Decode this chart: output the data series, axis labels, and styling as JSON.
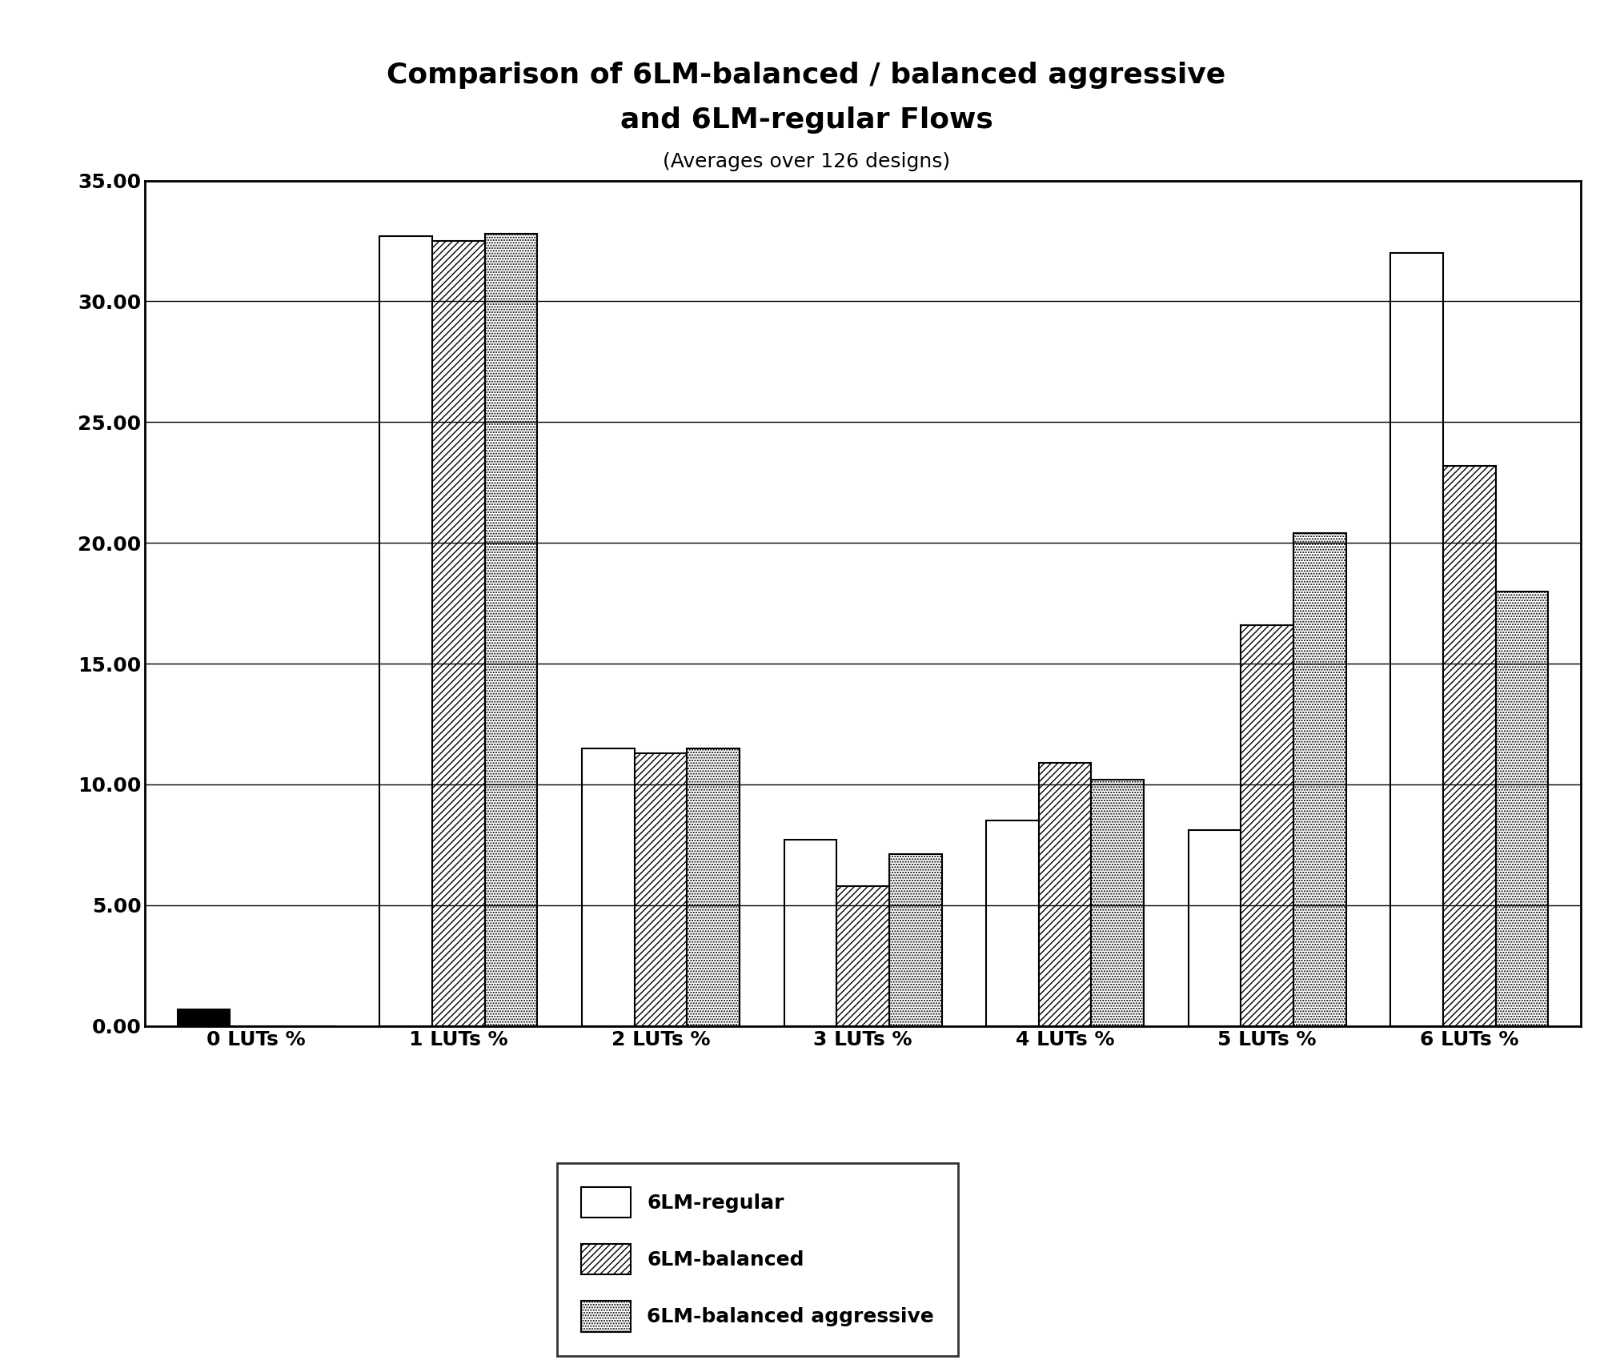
{
  "title_line1": "Comparison of 6LM-balanced / balanced aggressive",
  "title_line2": "and 6LM-regular Flows",
  "subtitle": "(Averages over 126 designs)",
  "categories": [
    "0 LUTs %",
    "1 LUTs %",
    "2 LUTs %",
    "3 LUTs %",
    "4 LUTs %",
    "5 LUTs %",
    "6 LUTs %"
  ],
  "series": {
    "6LM-regular": [
      0.7,
      32.7,
      11.5,
      7.7,
      8.5,
      8.1,
      32.0
    ],
    "6LM-balanced": [
      0.0,
      32.5,
      11.3,
      5.8,
      10.9,
      16.6,
      23.2
    ],
    "6LM-balanced aggressive": [
      0.0,
      32.8,
      11.5,
      7.1,
      10.2,
      20.4,
      18.0
    ]
  },
  "ylim": [
    0,
    35
  ],
  "yticks": [
    0,
    5,
    10,
    15,
    20,
    25,
    30,
    35
  ],
  "ytick_labels": [
    "0.00",
    "5.00",
    "10.00",
    "15.00",
    "20.00",
    "25.00",
    "30.00",
    "35.00"
  ],
  "bar_width": 0.26,
  "background_color": "#ffffff",
  "title_fontsize": 26,
  "subtitle_fontsize": 18,
  "tick_fontsize": 18,
  "legend_fontsize": 18,
  "colors": {
    "6LM-regular": "#ffffff",
    "6LM-balanced": "#ffffff",
    "6LM-balanced aggressive": "#ffffff"
  },
  "hatches": {
    "6LM-regular": "",
    "6LM-balanced": "////",
    "6LM-balanced aggressive": "....."
  },
  "edgecolor": "#000000",
  "grid_color": "#000000"
}
